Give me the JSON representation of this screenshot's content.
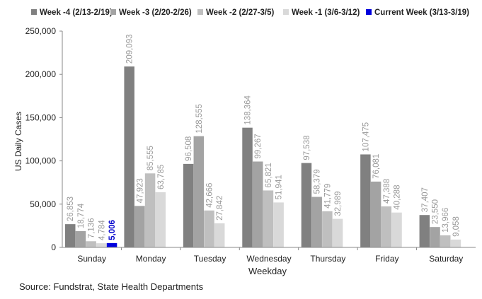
{
  "chart_data": {
    "type": "bar",
    "title": "",
    "xlabel": "Weekday",
    "ylabel": "US Daily Cases",
    "ylim": [
      0,
      250000
    ],
    "yticks": [
      0,
      50000,
      100000,
      150000,
      200000,
      250000
    ],
    "ytick_labels": [
      "0",
      "50,000",
      "100,000",
      "150,000",
      "200,000",
      "250,000"
    ],
    "grid": false,
    "legend_position": "top",
    "categories": [
      "Sunday",
      "Monday",
      "Tuesday",
      "Wednesday",
      "Thursday",
      "Friday",
      "Saturday"
    ],
    "series": [
      {
        "name": "Week -4 (2/13-2/19)",
        "color": "#808080",
        "values": [
          26853,
          209093,
          96508,
          138364,
          97538,
          107475,
          37407
        ],
        "labels": [
          "26,853",
          "209,093",
          "96,508",
          "138,364",
          "97,538",
          "107,475",
          "37,407"
        ]
      },
      {
        "name": "Week -3 (2/20-2/26)",
        "color": "#a3a3a3",
        "values": [
          18774,
          47923,
          128555,
          99267,
          58379,
          76081,
          23550
        ],
        "labels": [
          "18,774",
          "47,923",
          "128,555",
          "99,267",
          "58,379",
          "76,081",
          "23,550"
        ]
      },
      {
        "name": "Week -2 (2/27-3/5)",
        "color": "#bfbfbf",
        "values": [
          7136,
          85555,
          42666,
          65821,
          41779,
          47388,
          13966
        ],
        "labels": [
          "7,136",
          "85,555",
          "42,666",
          "65,821",
          "41,779",
          "47,388",
          "13,966"
        ]
      },
      {
        "name": "Week -1 (3/6-3/12)",
        "color": "#d9d9d9",
        "values": [
          4784,
          63785,
          27842,
          51941,
          32989,
          40288,
          9058
        ],
        "labels": [
          "4,784",
          "63,785",
          "27,842",
          "51,941",
          "32,989",
          "40,288",
          "9,058"
        ]
      },
      {
        "name": "Current Week (3/13-3/19)",
        "color": "#0000dd",
        "label_color": "#0000cc",
        "values": [
          5006,
          null,
          null,
          null,
          null,
          null,
          null
        ],
        "labels": [
          "5,006",
          null,
          null,
          null,
          null,
          null,
          null
        ]
      }
    ],
    "source": "Source: Fundstrat, State Health Departments"
  }
}
